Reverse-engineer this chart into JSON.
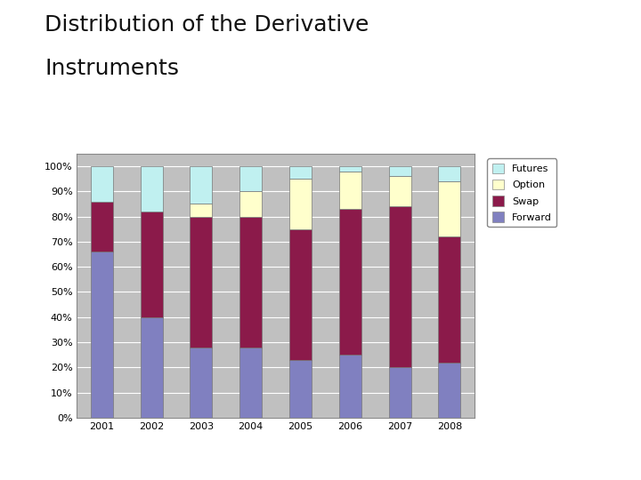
{
  "years": [
    2001,
    2002,
    2003,
    2004,
    2005,
    2006,
    2007,
    2008
  ],
  "forward": [
    66,
    40,
    28,
    28,
    23,
    25,
    20,
    22
  ],
  "swap": [
    20,
    42,
    52,
    52,
    52,
    58,
    64,
    50
  ],
  "option": [
    0,
    0,
    5,
    10,
    20,
    15,
    12,
    22
  ],
  "futures": [
    14,
    18,
    15,
    10,
    5,
    2,
    4,
    6
  ],
  "colors": {
    "forward": "#8080c0",
    "swap": "#8b1a4a",
    "option": "#ffffcc",
    "futures": "#c0f0f0"
  },
  "title_line1": "Distribution of the Derivative",
  "title_line2": "Instruments",
  "title_fontsize": 18,
  "bg_color": "#ffffff",
  "plot_bg": "#c0c0c0",
  "grid_color": "#ffffff",
  "bar_width": 0.45
}
